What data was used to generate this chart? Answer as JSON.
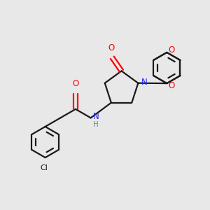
{
  "background_color": "#e8e8e8",
  "bond_color": "#1a1a1a",
  "nitrogen_color": "#2020ff",
  "oxygen_color": "#ff0000",
  "h_color": "#808080",
  "line_width": 1.6,
  "figsize": [
    3.0,
    3.0
  ],
  "dpi": 100,
  "xlim": [
    0,
    10
  ],
  "ylim": [
    0,
    10
  ]
}
